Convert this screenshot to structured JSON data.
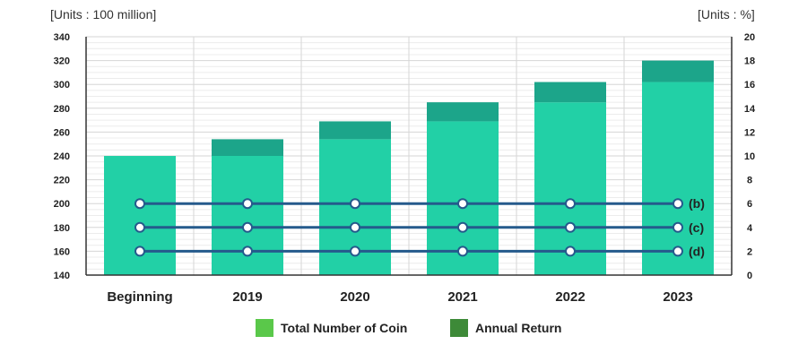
{
  "chart_data": {
    "type": "bar",
    "title": "",
    "left_axis_unit": "[Units : 100 million]",
    "right_axis_unit": "[Units : %]",
    "categories": [
      "Beginning",
      "2019",
      "2020",
      "2021",
      "2022",
      "2023"
    ],
    "left_axis": {
      "min": 140,
      "max": 340,
      "step": 20,
      "ticks": [
        "140",
        "160",
        "180",
        "200",
        "220",
        "240",
        "260",
        "280",
        "300",
        "320",
        "340"
      ]
    },
    "right_axis": {
      "min": 0,
      "max": 20,
      "step": 2,
      "ticks": [
        "0",
        "2",
        "4",
        "6",
        "8",
        "10",
        "12",
        "14",
        "16",
        "18",
        "20"
      ]
    },
    "grid": true,
    "legend_position": "bottom-center",
    "series": [
      {
        "name": "Total Number of Coin",
        "type": "bar",
        "axis": "left",
        "values": [
          240,
          240,
          254,
          269,
          285,
          302
        ]
      },
      {
        "name": "Annual Return",
        "type": "bar-stacked",
        "axis": "left",
        "values": [
          0,
          14,
          15,
          16,
          17,
          18
        ]
      },
      {
        "name": "(b)",
        "type": "line",
        "axis": "right",
        "values": [
          6,
          6,
          6,
          6,
          6,
          6
        ]
      },
      {
        "name": "(c)",
        "type": "line",
        "axis": "right",
        "values": [
          4,
          4,
          4,
          4,
          4,
          4
        ]
      },
      {
        "name": "(d)",
        "type": "line",
        "axis": "right",
        "values": [
          2,
          2,
          2,
          2,
          2,
          2
        ]
      }
    ],
    "colors": {
      "bar_base": "#22d0a6",
      "bar_top": "#1ca58a",
      "line": "#255a8c",
      "legend_total": "#5ac84a",
      "legend_return": "#3d8a38"
    }
  },
  "legend": {
    "items": [
      {
        "label": "Total Number of Coin",
        "color": "#5ac84a"
      },
      {
        "label": "Annual Return",
        "color": "#3d8a38"
      }
    ]
  }
}
